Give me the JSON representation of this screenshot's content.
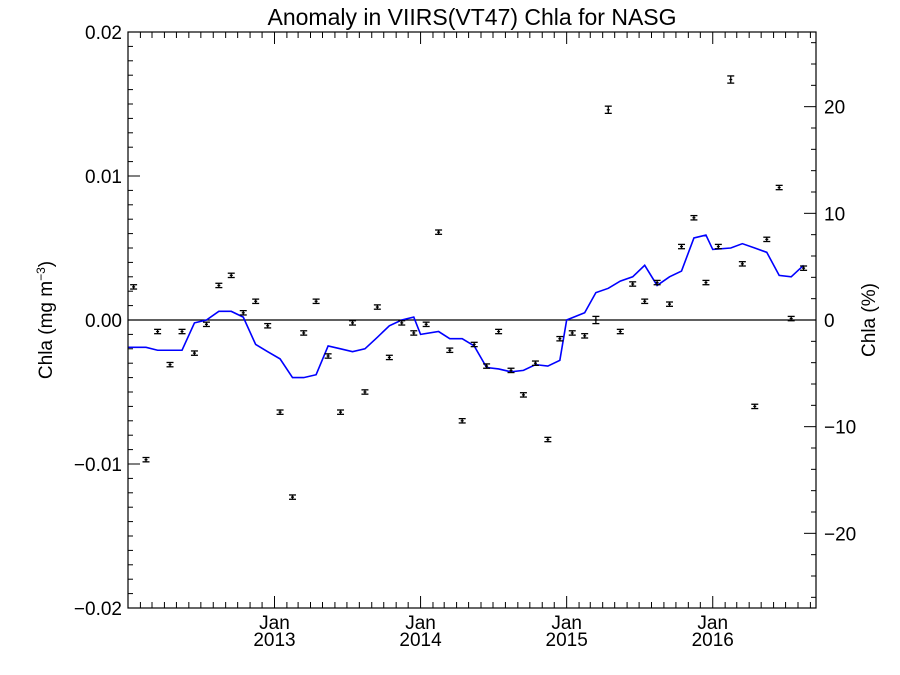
{
  "chart_data": {
    "type": "line",
    "title": "Anomaly in VIIRS(VT47) Chla for NASG",
    "ylabel_left": "Chla (mg m⁻³)",
    "ylabel_right": "Chla (%)",
    "left_axis": {
      "ylim": [
        -0.02,
        0.02
      ],
      "ticks": [
        0.02,
        0.01,
        0.0,
        -0.01,
        -0.02
      ],
      "tick_labels": [
        "0.02",
        "0.01",
        "0.00",
        "−0.01",
        "−0.02"
      ]
    },
    "right_axis": {
      "ylim": [
        -27,
        27
      ],
      "ticks": [
        20,
        10,
        0,
        -10,
        -20
      ],
      "tick_labels": [
        "20",
        "10",
        "0",
        "−10",
        "−20"
      ]
    },
    "x_axis": {
      "xlim": [
        "2012-01-01",
        "2016-09-15"
      ],
      "ticks": [
        "2013-01-01",
        "2014-01-01",
        "2015-01-01",
        "2016-01-01"
      ],
      "tick_month_labels": [
        "Jan",
        "Jan",
        "Jan",
        "Jan"
      ],
      "tick_year_labels": [
        "2013",
        "2014",
        "2015",
        "2016"
      ]
    },
    "zero_line": 0,
    "grid": false,
    "series": [
      {
        "type": "scatter_errorbar",
        "color": "#000000",
        "points": [
          {
            "x": "2012-01-15",
            "y": 0.0023,
            "err": 0.00015
          },
          {
            "x": "2012-02-15",
            "y": -0.0097,
            "err": 0.00015
          },
          {
            "x": "2012-03-15",
            "y": -0.0008,
            "err": 0.00015
          },
          {
            "x": "2012-04-15",
            "y": -0.0031,
            "err": 0.00015
          },
          {
            "x": "2012-05-15",
            "y": -0.0008,
            "err": 0.00015
          },
          {
            "x": "2012-06-15",
            "y": -0.0023,
            "err": 0.00015
          },
          {
            "x": "2012-07-15",
            "y": -0.0003,
            "err": 0.00015
          },
          {
            "x": "2012-08-15",
            "y": 0.0024,
            "err": 0.00015
          },
          {
            "x": "2012-09-15",
            "y": 0.0031,
            "err": 0.00015
          },
          {
            "x": "2012-10-15",
            "y": 0.0005,
            "err": 0.00015
          },
          {
            "x": "2012-11-15",
            "y": 0.0013,
            "err": 0.00015
          },
          {
            "x": "2012-12-15",
            "y": -0.0004,
            "err": 0.00015
          },
          {
            "x": "2013-01-15",
            "y": -0.0064,
            "err": 0.00015
          },
          {
            "x": "2013-02-15",
            "y": -0.0123,
            "err": 0.00015
          },
          {
            "x": "2013-03-15",
            "y": -0.0009,
            "err": 0.00015
          },
          {
            "x": "2013-04-15",
            "y": 0.0013,
            "err": 0.00015
          },
          {
            "x": "2013-05-15",
            "y": -0.0025,
            "err": 0.00015
          },
          {
            "x": "2013-06-15",
            "y": -0.0064,
            "err": 0.00015
          },
          {
            "x": "2013-07-15",
            "y": -0.0002,
            "err": 0.00015
          },
          {
            "x": "2013-08-15",
            "y": -0.005,
            "err": 0.00015
          },
          {
            "x": "2013-09-15",
            "y": 0.0009,
            "err": 0.00015
          },
          {
            "x": "2013-10-15",
            "y": -0.0026,
            "err": 0.00015
          },
          {
            "x": "2013-11-15",
            "y": -0.0002,
            "err": 0.00015
          },
          {
            "x": "2013-12-15",
            "y": -0.0009,
            "err": 0.00015
          },
          {
            "x": "2014-01-15",
            "y": -0.0003,
            "err": 0.00015
          },
          {
            "x": "2014-02-15",
            "y": 0.0061,
            "err": 0.00015
          },
          {
            "x": "2014-03-15",
            "y": -0.0021,
            "err": 0.00015
          },
          {
            "x": "2014-04-15",
            "y": -0.007,
            "err": 0.00015
          },
          {
            "x": "2014-05-15",
            "y": -0.0017,
            "err": 0.00015
          },
          {
            "x": "2014-06-15",
            "y": -0.0032,
            "err": 0.00015
          },
          {
            "x": "2014-07-15",
            "y": -0.0008,
            "err": 0.00015
          },
          {
            "x": "2014-08-15",
            "y": -0.0035,
            "err": 0.00015
          },
          {
            "x": "2014-09-15",
            "y": -0.0052,
            "err": 0.00015
          },
          {
            "x": "2014-10-15",
            "y": -0.003,
            "err": 0.00015
          },
          {
            "x": "2014-11-15",
            "y": -0.0083,
            "err": 0.00015
          },
          {
            "x": "2014-12-15",
            "y": -0.0013,
            "err": 0.00015
          },
          {
            "x": "2015-01-15",
            "y": -0.0009,
            "err": 0.00015
          },
          {
            "x": "2015-02-15",
            "y": -0.0011,
            "err": 0.00015
          },
          {
            "x": "2015-03-15",
            "y": 0.0,
            "err": 0.00025
          },
          {
            "x": "2015-04-15",
            "y": 0.0146,
            "err": 0.00025
          },
          {
            "x": "2015-05-15",
            "y": -0.0008,
            "err": 0.00015
          },
          {
            "x": "2015-06-15",
            "y": 0.0025,
            "err": 0.00015
          },
          {
            "x": "2015-07-15",
            "y": 0.0013,
            "err": 0.00015
          },
          {
            "x": "2015-08-15",
            "y": 0.0026,
            "err": 0.00015
          },
          {
            "x": "2015-09-15",
            "y": 0.0011,
            "err": 0.00015
          },
          {
            "x": "2015-10-15",
            "y": 0.0051,
            "err": 0.00015
          },
          {
            "x": "2015-11-15",
            "y": 0.0071,
            "err": 0.00015
          },
          {
            "x": "2015-12-15",
            "y": 0.0026,
            "err": 0.00015
          },
          {
            "x": "2016-01-15",
            "y": 0.0051,
            "err": 0.00015
          },
          {
            "x": "2016-02-15",
            "y": 0.0167,
            "err": 0.00025
          },
          {
            "x": "2016-03-15",
            "y": 0.0039,
            "err": 0.00015
          },
          {
            "x": "2016-04-15",
            "y": -0.006,
            "err": 0.00015
          },
          {
            "x": "2016-05-15",
            "y": 0.0056,
            "err": 0.00015
          },
          {
            "x": "2016-06-15",
            "y": 0.0092,
            "err": 0.00015
          },
          {
            "x": "2016-07-15",
            "y": 0.0001,
            "err": 0.00015
          },
          {
            "x": "2016-08-15",
            "y": 0.0036,
            "err": 0.00015
          }
        ]
      },
      {
        "type": "line",
        "color": "#0000ff",
        "points": [
          {
            "x": "2012-01-01",
            "y": -0.0019
          },
          {
            "x": "2012-02-15",
            "y": -0.0019
          },
          {
            "x": "2012-03-15",
            "y": -0.0021
          },
          {
            "x": "2012-04-15",
            "y": -0.0021
          },
          {
            "x": "2012-05-15",
            "y": -0.0021
          },
          {
            "x": "2012-06-15",
            "y": -0.0002
          },
          {
            "x": "2012-07-15",
            "y": 0.0
          },
          {
            "x": "2012-08-15",
            "y": 0.0006
          },
          {
            "x": "2012-09-15",
            "y": 0.0006
          },
          {
            "x": "2012-10-15",
            "y": 0.0002
          },
          {
            "x": "2012-11-15",
            "y": -0.0017
          },
          {
            "x": "2012-12-15",
            "y": -0.0022
          },
          {
            "x": "2013-01-15",
            "y": -0.0027
          },
          {
            "x": "2013-02-15",
            "y": -0.004
          },
          {
            "x": "2013-03-15",
            "y": -0.004
          },
          {
            "x": "2013-04-15",
            "y": -0.0038
          },
          {
            "x": "2013-05-15",
            "y": -0.0018
          },
          {
            "x": "2013-06-15",
            "y": -0.002
          },
          {
            "x": "2013-07-15",
            "y": -0.0022
          },
          {
            "x": "2013-08-15",
            "y": -0.002
          },
          {
            "x": "2013-09-15",
            "y": -0.0012
          },
          {
            "x": "2013-10-15",
            "y": -0.0004
          },
          {
            "x": "2013-11-15",
            "y": 0.0
          },
          {
            "x": "2013-12-15",
            "y": 0.0002
          },
          {
            "x": "2014-01-01",
            "y": -0.001
          },
          {
            "x": "2014-02-15",
            "y": -0.0008
          },
          {
            "x": "2014-03-15",
            "y": -0.0013
          },
          {
            "x": "2014-04-15",
            "y": -0.0013
          },
          {
            "x": "2014-05-15",
            "y": -0.0018
          },
          {
            "x": "2014-06-15",
            "y": -0.0033
          },
          {
            "x": "2014-07-15",
            "y": -0.0034
          },
          {
            "x": "2014-08-15",
            "y": -0.0036
          },
          {
            "x": "2014-09-15",
            "y": -0.0035
          },
          {
            "x": "2014-10-15",
            "y": -0.0031
          },
          {
            "x": "2014-11-15",
            "y": -0.0032
          },
          {
            "x": "2014-12-15",
            "y": -0.0028
          },
          {
            "x": "2015-01-01",
            "y": 0.0
          },
          {
            "x": "2015-02-15",
            "y": 0.0005
          },
          {
            "x": "2015-03-15",
            "y": 0.0019
          },
          {
            "x": "2015-04-15",
            "y": 0.0022
          },
          {
            "x": "2015-05-15",
            "y": 0.0027
          },
          {
            "x": "2015-06-15",
            "y": 0.003
          },
          {
            "x": "2015-07-15",
            "y": 0.0038
          },
          {
            "x": "2015-08-15",
            "y": 0.0024
          },
          {
            "x": "2015-09-15",
            "y": 0.003
          },
          {
            "x": "2015-10-15",
            "y": 0.0034
          },
          {
            "x": "2015-11-15",
            "y": 0.0057
          },
          {
            "x": "2015-12-15",
            "y": 0.0059
          },
          {
            "x": "2016-01-01",
            "y": 0.0049
          },
          {
            "x": "2016-02-15",
            "y": 0.005
          },
          {
            "x": "2016-03-15",
            "y": 0.0053
          },
          {
            "x": "2016-04-15",
            "y": 0.005
          },
          {
            "x": "2016-05-15",
            "y": 0.0047
          },
          {
            "x": "2016-06-15",
            "y": 0.0031
          },
          {
            "x": "2016-07-15",
            "y": 0.003
          },
          {
            "x": "2016-08-15",
            "y": 0.0038
          }
        ]
      }
    ]
  }
}
